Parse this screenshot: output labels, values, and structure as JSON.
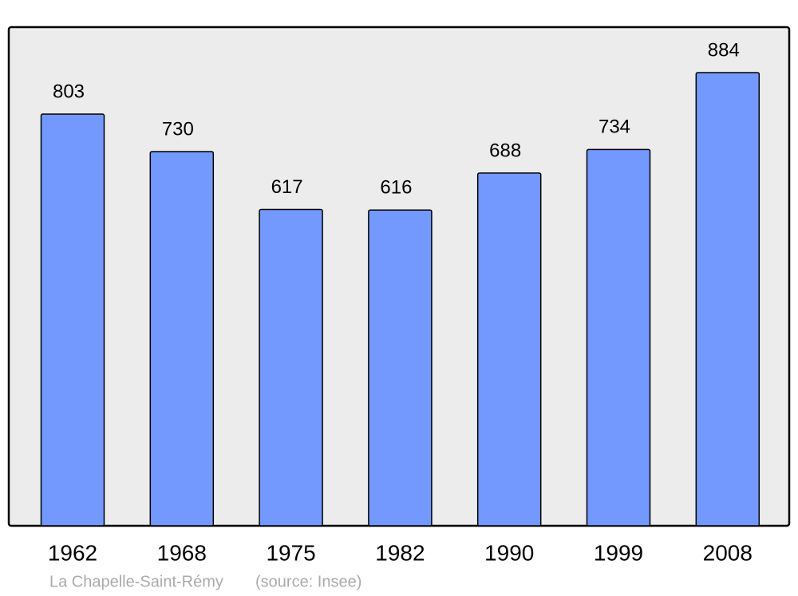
{
  "chart_data": {
    "type": "bar",
    "title": "La Chapelle-Saint-Rémy",
    "source": "(source: Insee)",
    "categories": [
      "1962",
      "1968",
      "1975",
      "1982",
      "1990",
      "1999",
      "2008"
    ],
    "values": [
      803,
      730,
      617,
      616,
      688,
      734,
      884
    ],
    "color": "#7399ff",
    "background": "#ececec"
  }
}
